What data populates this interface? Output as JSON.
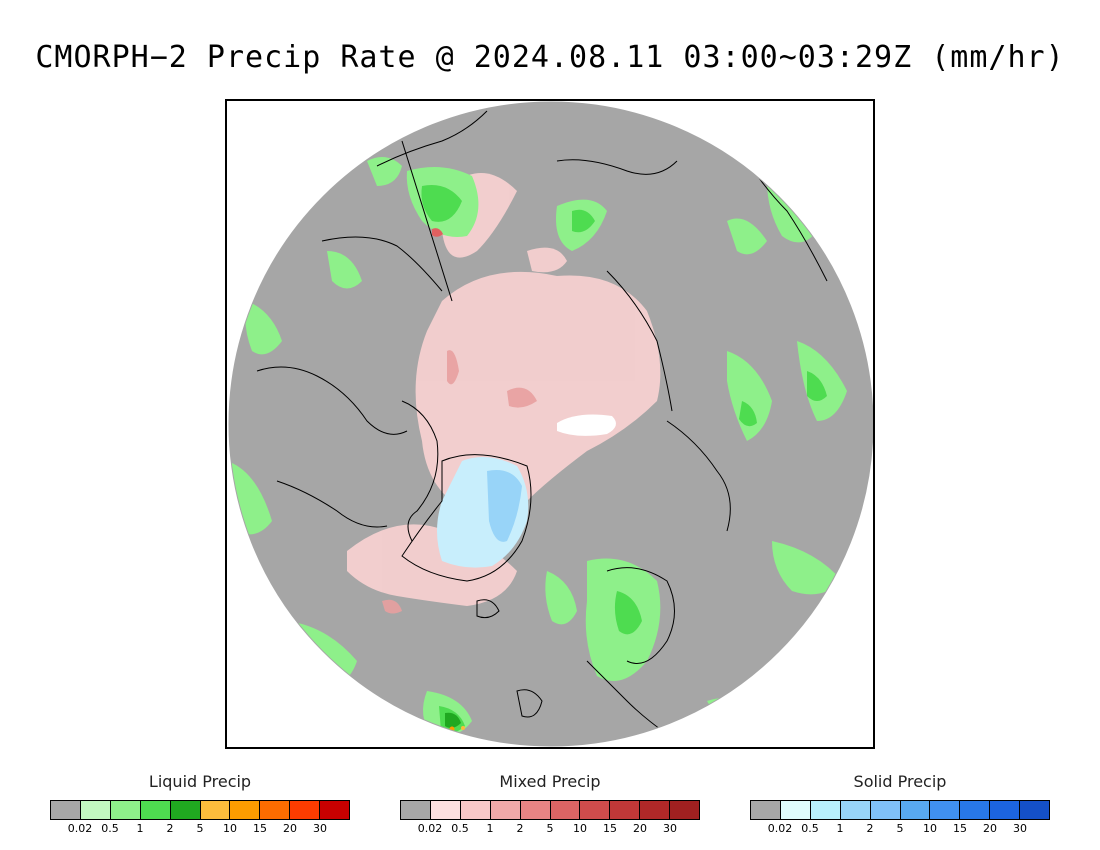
{
  "title": "CMORPH−2 Precip Rate @ 2024.08.11 03:00~03:29Z (mm/hr)",
  "map": {
    "projection": "north-polar-stereographic",
    "land_color": "#a6a6a6",
    "coast_color": "#000000",
    "no_data_color": "#ffffff"
  },
  "legends": [
    {
      "title": "Liquid Precip",
      "colors": [
        "#a6a6a6",
        "#c2f8c0",
        "#8ef08a",
        "#4edc50",
        "#20a820",
        "#fcbc3c",
        "#fc9c00",
        "#fc6c00",
        "#fc3c00",
        "#c80000"
      ],
      "ticks": [
        "0.02",
        "0.5",
        "1",
        "2",
        "5",
        "10",
        "15",
        "20",
        "30"
      ]
    },
    {
      "title": "Mixed Precip",
      "colors": [
        "#a6a6a6",
        "#fce0e0",
        "#f8c8c8",
        "#f0a8a8",
        "#e88484",
        "#dc6464",
        "#d04c4c",
        "#c03838",
        "#b02828",
        "#a02020"
      ],
      "ticks": [
        "0.02",
        "0.5",
        "1",
        "2",
        "5",
        "10",
        "15",
        "20",
        "30"
      ]
    },
    {
      "title": "Solid Precip",
      "colors": [
        "#a6a6a6",
        "#e0fcfc",
        "#b8f0fc",
        "#98d4f8",
        "#80c0f8",
        "#58a8f0",
        "#4090f0",
        "#2878e8",
        "#1c64e0",
        "#1450c8"
      ],
      "ticks": [
        "0.02",
        "0.5",
        "1",
        "2",
        "5",
        "10",
        "15",
        "20",
        "30"
      ]
    }
  ]
}
